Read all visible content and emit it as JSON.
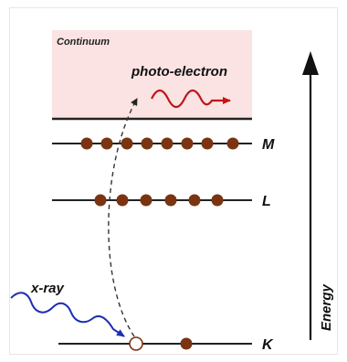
{
  "diagram": {
    "continuum_label": "Continuum",
    "photo_electron_label": "photo-electron",
    "xray_label": "x-ray",
    "energy_label": "Energy",
    "levels": [
      {
        "name": "M",
        "electrons": 8
      },
      {
        "name": "L",
        "electrons": 6
      },
      {
        "name": "K",
        "electrons": 1,
        "vacancies": 1
      }
    ],
    "colors": {
      "continuum_fill": "#fbe3e3",
      "electron": "#7a3412",
      "photo_electron_wave": "#c0151a",
      "xray_wave": "#1f2fb3",
      "line": "#222222"
    }
  }
}
